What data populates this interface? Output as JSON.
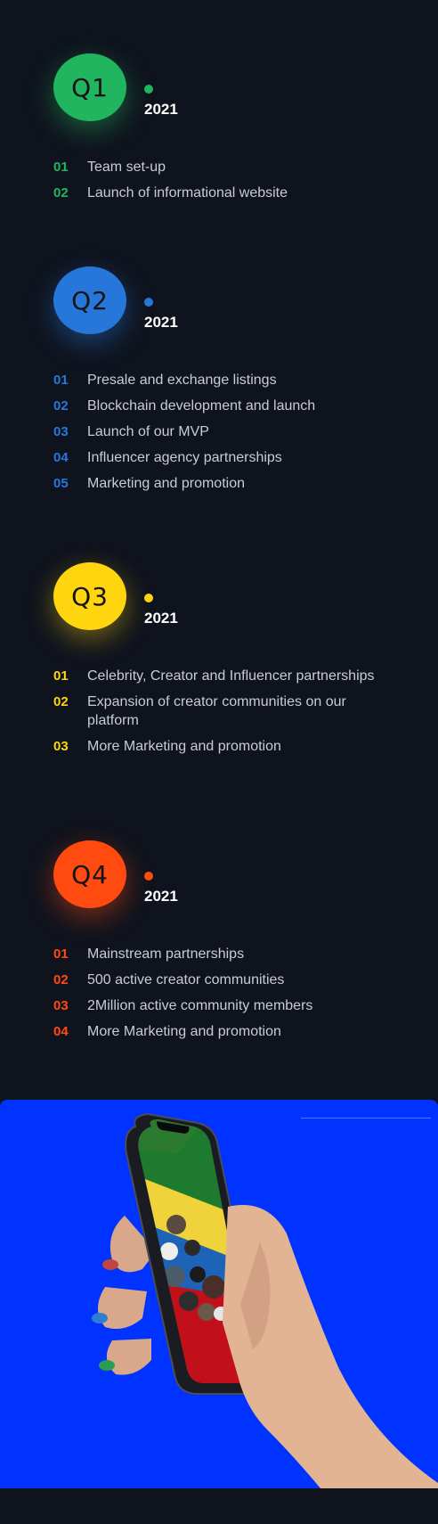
{
  "roadmap": [
    {
      "id": "q1",
      "label": "Q1",
      "year": "2021",
      "color": "#22b560",
      "items": [
        {
          "num": "01",
          "text": "Team set-up"
        },
        {
          "num": "02",
          "text": "Launch of informational website"
        }
      ]
    },
    {
      "id": "q2",
      "label": "Q2",
      "year": "2021",
      "color": "#2677d9",
      "items": [
        {
          "num": "01",
          "text": "Presale and exchange listings"
        },
        {
          "num": "02",
          "text": "Blockchain development and launch"
        },
        {
          "num": "03",
          "text": "Launch of our MVP"
        },
        {
          "num": "04",
          "text": "Influencer agency partnerships"
        },
        {
          "num": "05",
          "text": "Marketing and promotion"
        }
      ]
    },
    {
      "id": "q3",
      "label": "Q3",
      "year": "2021",
      "color": "#ffd510",
      "items": [
        {
          "num": "01",
          "text": "Celebrity, Creator and Influencer partnerships"
        },
        {
          "num": "02",
          "text": "Expansion of creator communities on our platform"
        },
        {
          "num": "03",
          "text": "More Marketing and promotion"
        }
      ]
    },
    {
      "id": "q4",
      "label": "Q4",
      "year": "2021",
      "color": "#ff4a10",
      "items": [
        {
          "num": "01",
          "text": "Mainstream partnerships"
        },
        {
          "num": "02",
          "text": "500 active creator communities"
        },
        {
          "num": "03",
          "text": "2Million active community members"
        },
        {
          "num": "04",
          "text": "More Marketing and promotion"
        }
      ]
    }
  ],
  "banner": {
    "background": "#0033ff",
    "image": "hand-holding-phone-illustration"
  }
}
